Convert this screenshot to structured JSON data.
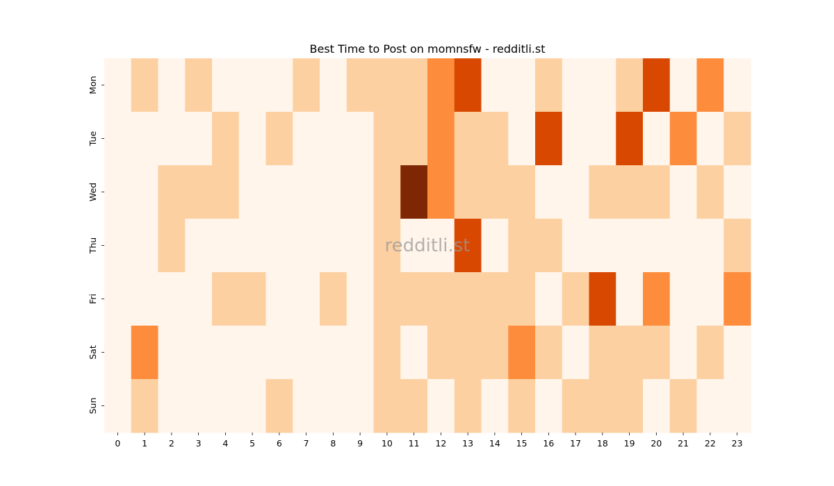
{
  "chart_data": {
    "type": "heatmap",
    "title": "Best Time to Post on momnsfw - redditli.st",
    "watermark": "redditli.st",
    "xlabel": "",
    "ylabel": "",
    "x": [
      "0",
      "1",
      "2",
      "3",
      "4",
      "5",
      "6",
      "7",
      "8",
      "9",
      "10",
      "11",
      "12",
      "13",
      "14",
      "15",
      "16",
      "17",
      "18",
      "19",
      "20",
      "21",
      "22",
      "23"
    ],
    "y": [
      "Mon",
      "Tue",
      "Wed",
      "Thu",
      "Fri",
      "Sat",
      "Sun"
    ],
    "levels": 5,
    "colormap": [
      "#fff5eb",
      "#fdd0a2",
      "#fd8d3c",
      "#d94801",
      "#7f2704"
    ],
    "values": [
      [
        0,
        1,
        0,
        1,
        0,
        0,
        0,
        1,
        0,
        1,
        1,
        1,
        2,
        3,
        0,
        0,
        1,
        0,
        0,
        1,
        3,
        0,
        2,
        0
      ],
      [
        0,
        0,
        0,
        0,
        1,
        0,
        1,
        0,
        0,
        0,
        1,
        1,
        2,
        1,
        1,
        0,
        3,
        0,
        0,
        3,
        0,
        2,
        0,
        1
      ],
      [
        0,
        0,
        1,
        1,
        1,
        0,
        0,
        0,
        0,
        0,
        1,
        4,
        2,
        1,
        1,
        1,
        0,
        0,
        1,
        1,
        1,
        0,
        1,
        0
      ],
      [
        0,
        0,
        1,
        0,
        0,
        0,
        0,
        0,
        0,
        0,
        1,
        0,
        0,
        3,
        0,
        1,
        1,
        0,
        0,
        0,
        0,
        0,
        0,
        1
      ],
      [
        0,
        0,
        0,
        0,
        1,
        1,
        0,
        0,
        1,
        0,
        1,
        1,
        1,
        1,
        1,
        1,
        0,
        1,
        3,
        0,
        2,
        0,
        0,
        2
      ],
      [
        0,
        2,
        0,
        0,
        0,
        0,
        0,
        0,
        0,
        0,
        1,
        0,
        1,
        1,
        1,
        2,
        1,
        0,
        1,
        1,
        1,
        0,
        1,
        0
      ],
      [
        0,
        1,
        0,
        0,
        0,
        0,
        1,
        0,
        0,
        0,
        1,
        1,
        0,
        1,
        0,
        1,
        0,
        1,
        1,
        1,
        0,
        1,
        0,
        0
      ]
    ],
    "grid": false,
    "legend": "none"
  }
}
